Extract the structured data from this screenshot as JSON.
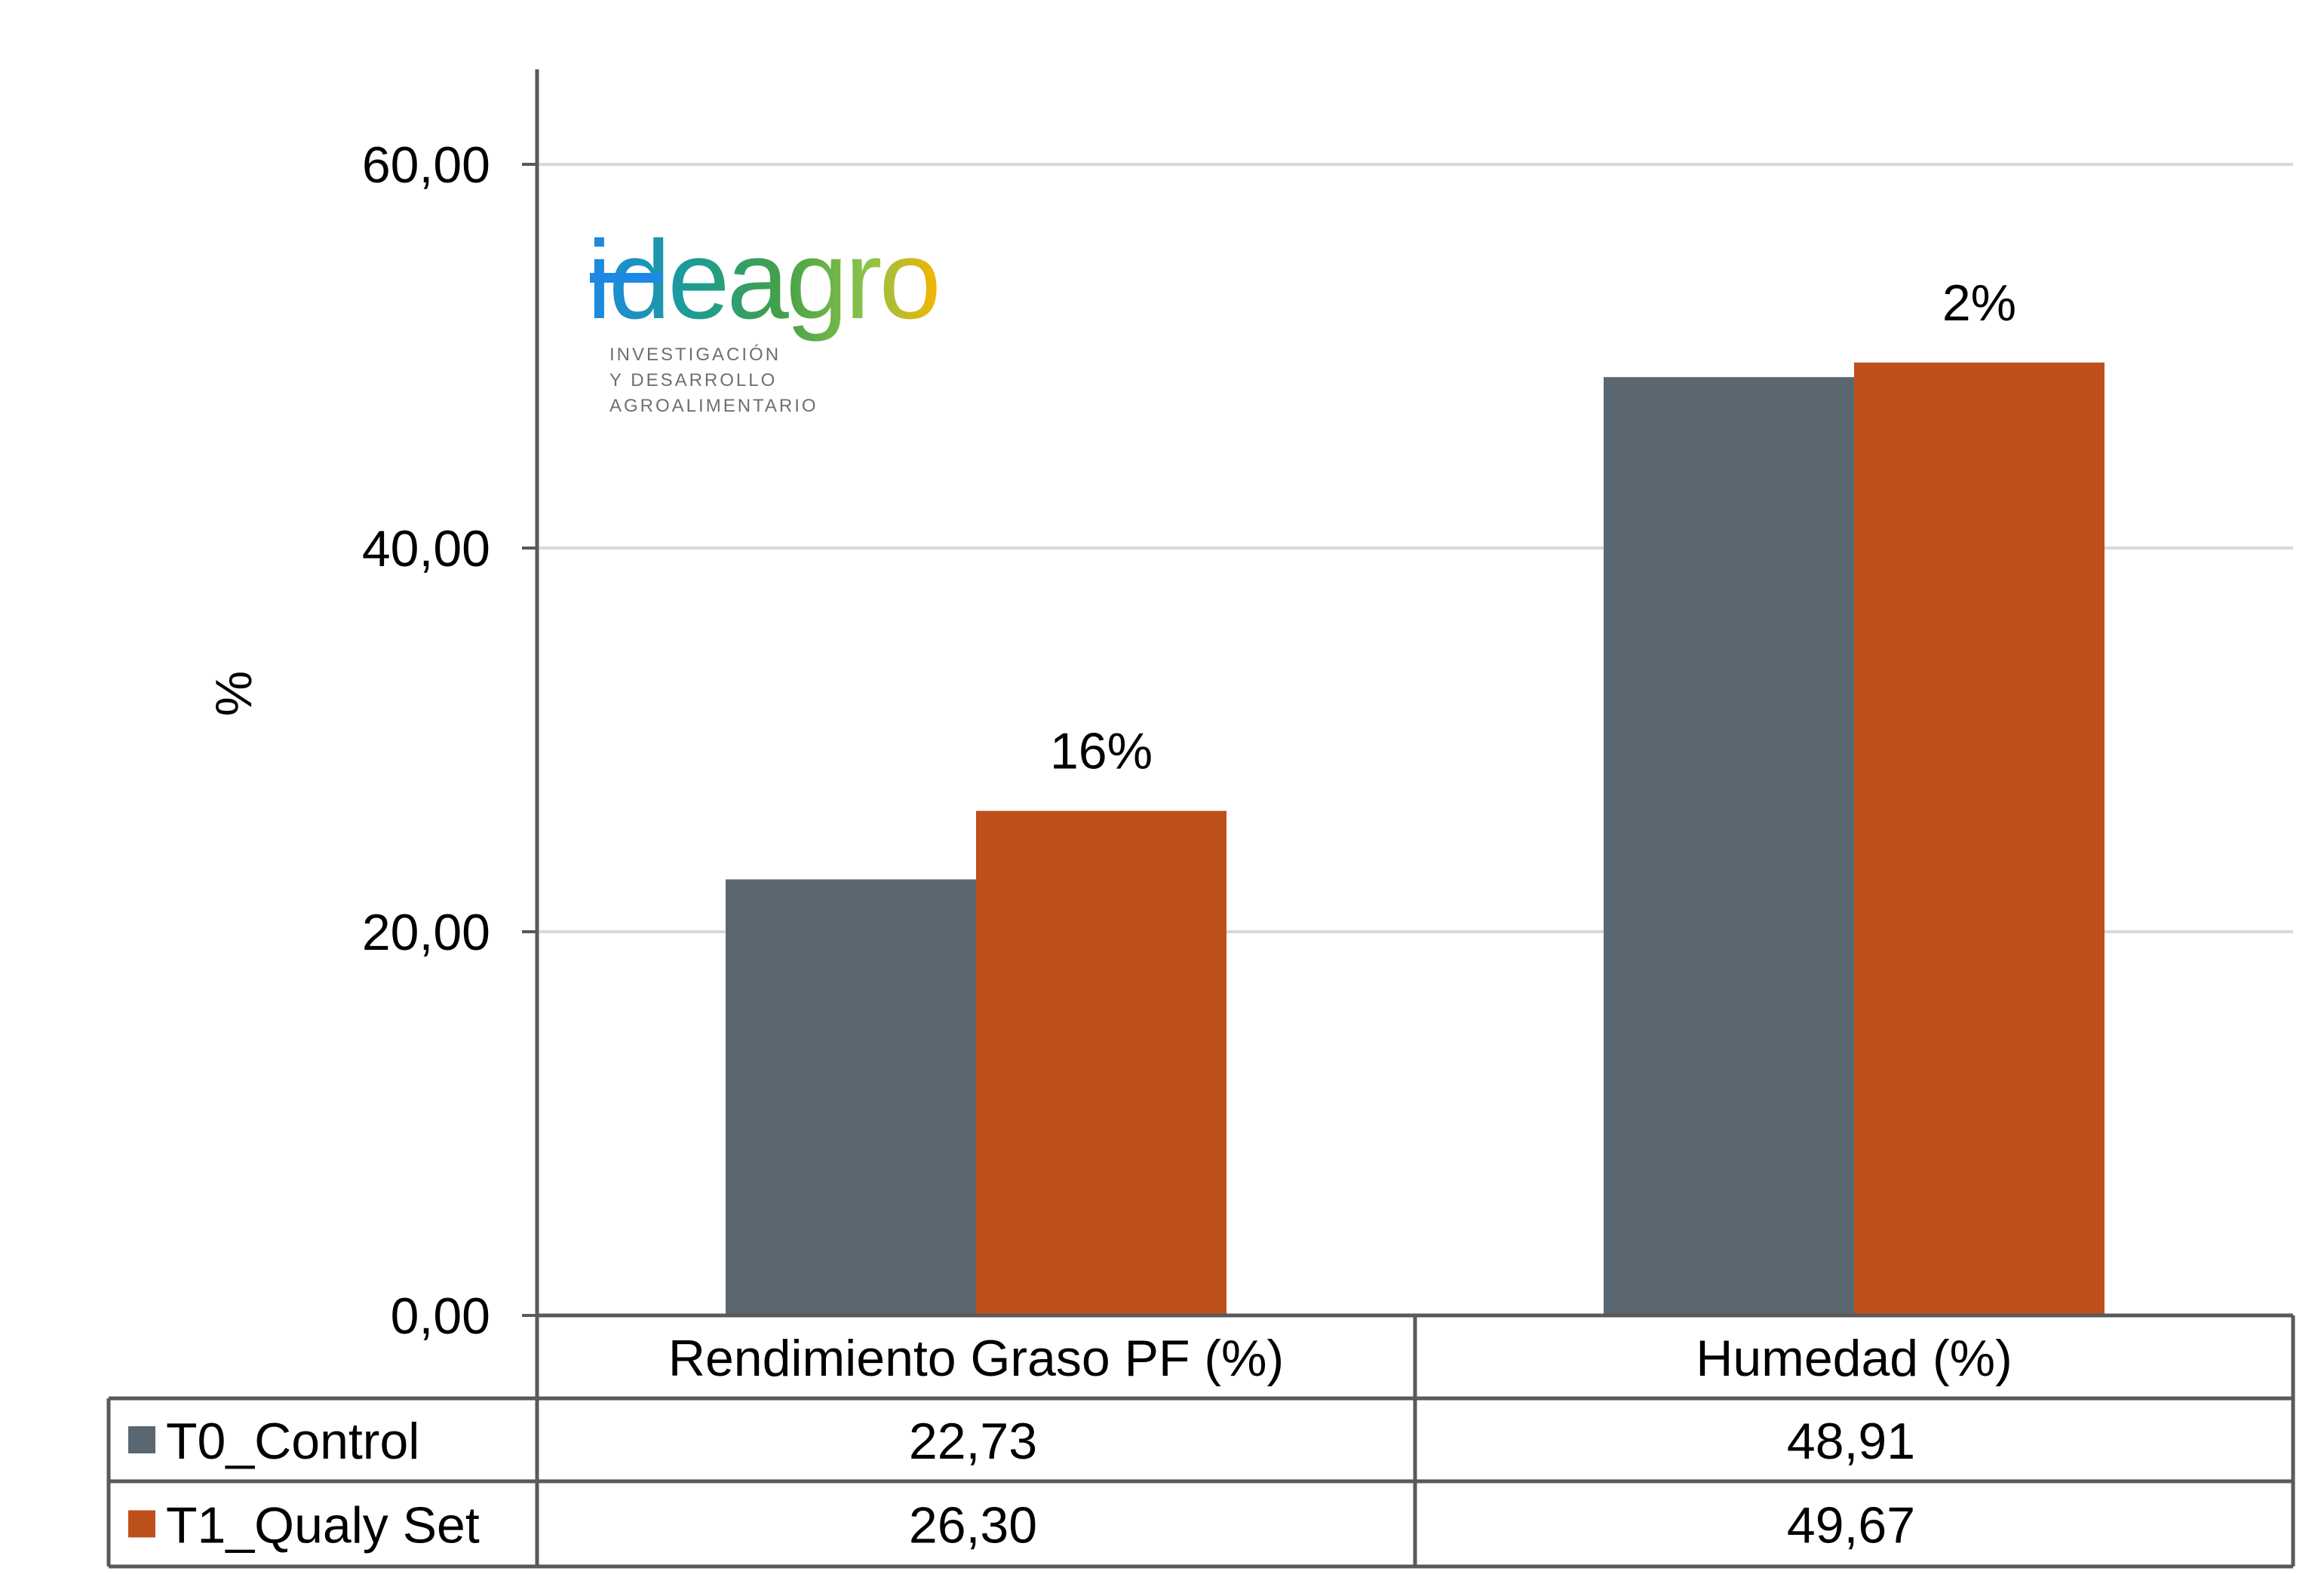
{
  "chart_data": {
    "type": "bar",
    "categories": [
      "Rendimiento Graso PF (%)",
      "Humedad (%)"
    ],
    "series": [
      {
        "name": "T0_Control",
        "color": "#5b6770",
        "values": [
          22.73,
          48.91
        ],
        "labels": [
          "22,73",
          "48,91"
        ]
      },
      {
        "name": "T1_Qualy Set",
        "color": "#be501c",
        "values": [
          26.3,
          49.67
        ],
        "labels": [
          "26,30",
          "49,67"
        ]
      }
    ],
    "annotations": [
      "16%",
      "2%"
    ],
    "ylabel": "%",
    "ylim": [
      0,
      65
    ],
    "yticks": [
      0,
      20,
      40,
      60
    ],
    "ytick_labels": [
      "0,00",
      "20,00",
      "40,00",
      "60,00"
    ],
    "grid": true,
    "legend": "data-table"
  },
  "logo": {
    "name": "ideagro",
    "lines": [
      "INVESTIGACIÓN",
      "Y DESARROLLO",
      "AGROALIMENTARIO"
    ]
  }
}
